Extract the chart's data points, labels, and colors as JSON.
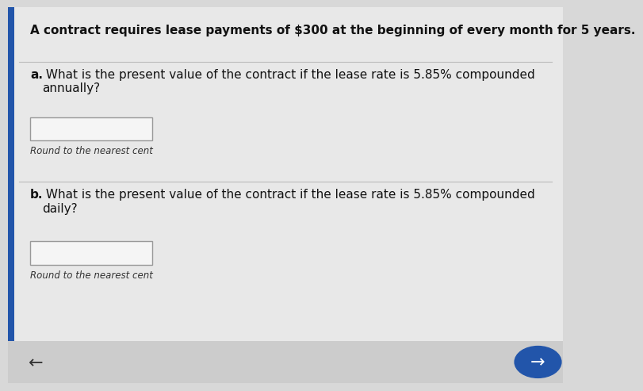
{
  "title": "A contract requires lease payments of $300 at the beginning of every month for 5 years.",
  "question_a_bold": "a.",
  "question_a_text": " What is the present value of the contract if the lease rate is 5.85% compounded\nannually?",
  "question_b_bold": "b.",
  "question_b_text": " What is the present value of the contract if the lease rate is 5.85% compounded\ndaily?",
  "hint": "Round to the nearest cent",
  "bg_color": "#d8d8d8",
  "content_bg": "#e8e8e8",
  "box_border": "#999999",
  "box_fill": "#f5f5f5",
  "text_color": "#111111",
  "hint_color": "#333333",
  "left_bar_color": "#2255aa",
  "nav_bg": "#cccccc",
  "sep_color": "#bbbbbb"
}
